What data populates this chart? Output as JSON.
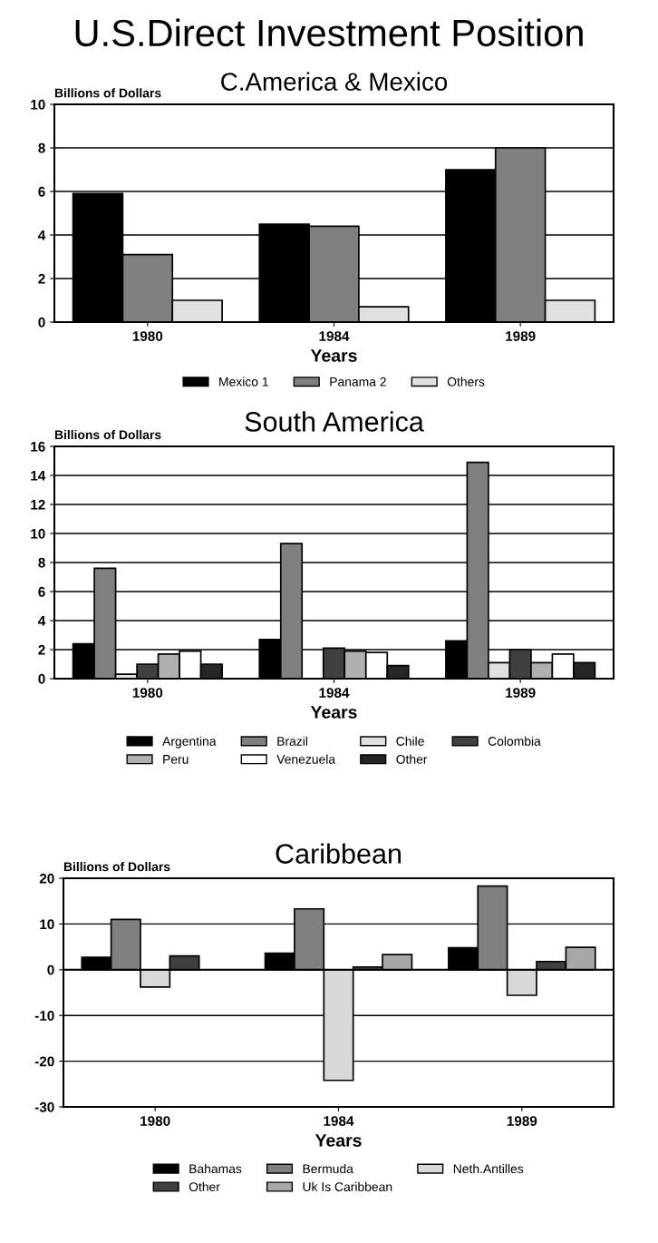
{
  "chart_data": [
    {
      "type": "bar",
      "title": "U.S.Direct Investment Position",
      "subtitle": "C.America & Mexico",
      "xlabel": "Years",
      "ylabel": "Billions of Dollars",
      "categories": [
        "1980",
        "1984",
        "1989"
      ],
      "series": [
        {
          "name": "Mexico 1",
          "color": "#000000",
          "values": [
            5.9,
            4.5,
            7.0
          ]
        },
        {
          "name": "Panama 2",
          "color": "#808080",
          "values": [
            3.1,
            4.4,
            8.0
          ]
        },
        {
          "name": "Others",
          "color": "#e0e0e0",
          "values": [
            1.0,
            0.7,
            1.0
          ]
        }
      ],
      "ylim": [
        0,
        10
      ],
      "yticks": [
        0,
        2,
        4,
        6,
        8,
        10
      ],
      "grid": "y",
      "legend": "bottom"
    },
    {
      "type": "bar",
      "title": "South America",
      "xlabel": "Years",
      "ylabel": "Billions of Dollars",
      "categories": [
        "1980",
        "1984",
        "1989"
      ],
      "series": [
        {
          "name": "Argentina",
          "color": "#000000",
          "values": [
            2.4,
            2.7,
            2.6
          ]
        },
        {
          "name": "Brazil",
          "color": "#808080",
          "values": [
            7.6,
            9.3,
            14.9
          ]
        },
        {
          "name": "Chile",
          "color": "#e0e0e0",
          "values": [
            0.3,
            null,
            1.1
          ]
        },
        {
          "name": "Colombia",
          "color": "#404040",
          "values": [
            1.0,
            2.1,
            2.0
          ]
        },
        {
          "name": "Peru",
          "color": "#b0b0b0",
          "values": [
            1.7,
            1.9,
            1.1
          ]
        },
        {
          "name": "Venezuela",
          "color": "#ffffff",
          "values": [
            1.9,
            1.8,
            1.7
          ]
        },
        {
          "name": "Other",
          "color": "#262626",
          "values": [
            1.0,
            0.9,
            1.1
          ]
        }
      ],
      "ylim": [
        0,
        16
      ],
      "yticks": [
        0,
        2,
        4,
        6,
        8,
        10,
        12,
        14,
        16
      ],
      "grid": "y",
      "legend": "bottom"
    },
    {
      "type": "bar",
      "title": "Caribbean",
      "xlabel": "Years",
      "ylabel": "Billions of Dollars",
      "categories": [
        "1980",
        "1984",
        "1989"
      ],
      "series": [
        {
          "name": "Bahamas",
          "color": "#000000",
          "values": [
            2.7,
            3.6,
            4.8
          ]
        },
        {
          "name": "Bermuda",
          "color": "#808080",
          "values": [
            11.0,
            13.3,
            18.3
          ]
        },
        {
          "name": "Neth.Antilles",
          "color": "#d8d8d8",
          "values": [
            -3.8,
            -24.2,
            -5.6
          ]
        },
        {
          "name": "Other",
          "color": "#404040",
          "values": [
            3.0,
            0.6,
            1.8
          ]
        },
        {
          "name": "Uk Is Caribbean",
          "color": "#a8a8a8",
          "values": [
            null,
            3.3,
            4.9
          ]
        }
      ],
      "ylim": [
        -30,
        20
      ],
      "yticks": [
        {
          "value": -30,
          "label": "-30"
        },
        {
          "value": -20,
          "label": "-20"
        },
        {
          "value": -10,
          "label": "-10"
        },
        0,
        10,
        20
      ],
      "grid": "y",
      "legend": "bottom"
    }
  ]
}
